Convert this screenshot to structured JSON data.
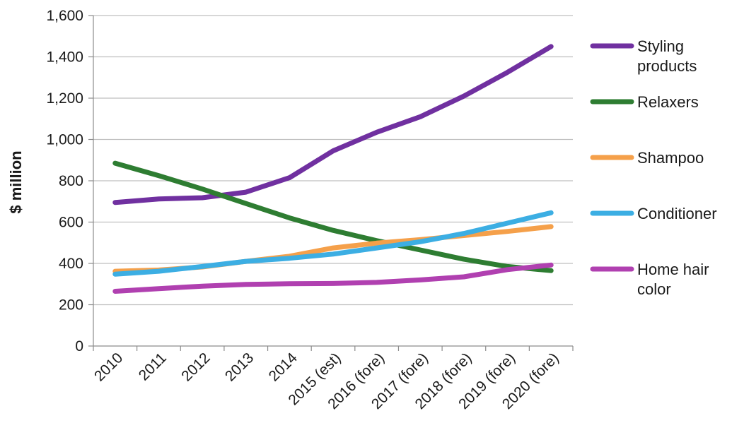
{
  "chart_data": {
    "type": "line",
    "title": "",
    "xlabel": "",
    "ylabel": "$ million",
    "ylim": [
      0,
      1600
    ],
    "yticks": [
      0,
      200,
      400,
      600,
      800,
      1000,
      1200,
      1400,
      1600
    ],
    "ytick_labels": [
      "0",
      "200",
      "400",
      "600",
      "800",
      "1,000",
      "1,200",
      "1,400",
      "1,600"
    ],
    "categories": [
      "2010",
      "2011",
      "2012",
      "2013",
      "2014",
      "2015 (est)",
      "2016 (fore)",
      "2017 (fore)",
      "2018 (fore)",
      "2019 (fore)",
      "2020 (fore)"
    ],
    "grid": true,
    "legend_position": "right",
    "series": [
      {
        "name": "Styling products",
        "legend_lines": [
          "Styling",
          "products"
        ],
        "color": "#7030a0",
        "values": [
          695,
          712,
          718,
          745,
          815,
          945,
          1035,
          1110,
          1210,
          1325,
          1450
        ]
      },
      {
        "name": "Relaxers",
        "legend_lines": [
          "Relaxers"
        ],
        "color": "#2e7d32",
        "values": [
          885,
          825,
          760,
          690,
          620,
          560,
          510,
          465,
          420,
          385,
          365
        ]
      },
      {
        "name": "Shampoo",
        "legend_lines": [
          "Shampoo"
        ],
        "color": "#f5a04a",
        "values": [
          362,
          368,
          383,
          410,
          435,
          475,
          498,
          515,
          535,
          555,
          578
        ]
      },
      {
        "name": "Conditioner",
        "legend_lines": [
          "Conditioner"
        ],
        "color": "#3caee3",
        "values": [
          348,
          362,
          385,
          410,
          425,
          445,
          475,
          505,
          545,
          595,
          645
        ]
      },
      {
        "name": "Home hair color",
        "legend_lines": [
          "Home hair",
          "color"
        ],
        "color": "#b040b0",
        "values": [
          265,
          278,
          290,
          298,
          302,
          303,
          308,
          320,
          335,
          370,
          392
        ]
      }
    ]
  }
}
